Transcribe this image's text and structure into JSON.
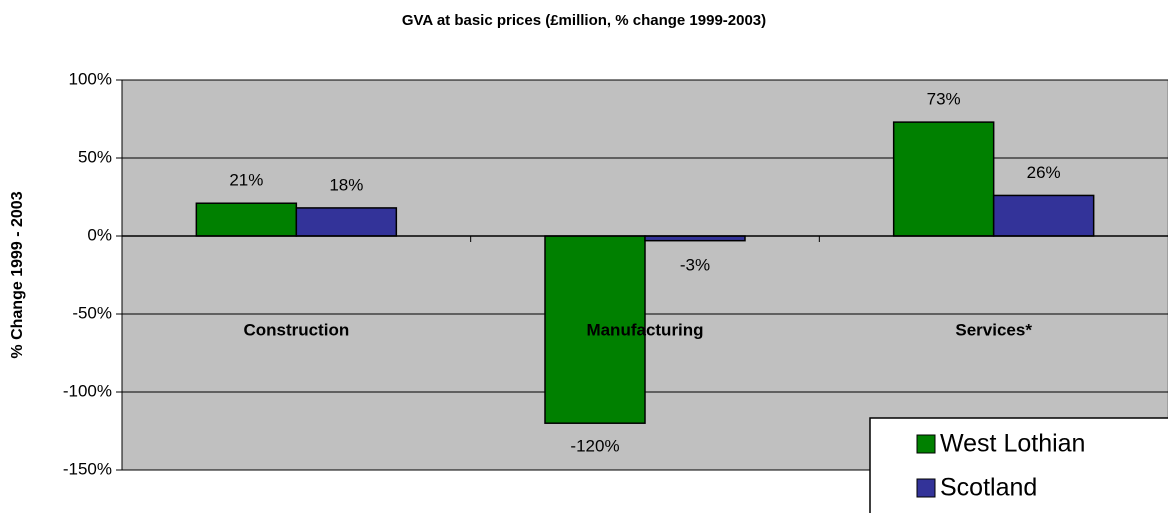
{
  "chart_data": {
    "type": "bar",
    "title": "GVA at basic prices (£million, % change 1999-2003)",
    "ylabel": "% Change 1999 - 2003",
    "categories": [
      "Construction",
      "Manufacturing",
      "Services*"
    ],
    "series": [
      {
        "name": "West Lothian",
        "color": "#008000",
        "values": [
          21,
          -120,
          73
        ],
        "value_labels": [
          "21%",
          "-120%",
          "73%"
        ]
      },
      {
        "name": "Scotland",
        "color": "#333399",
        "values": [
          18,
          -3,
          26
        ],
        "value_labels": [
          "18%",
          "-3%",
          "26%"
        ]
      }
    ],
    "ylim": [
      -150,
      100
    ],
    "yticks": [
      {
        "value": -150,
        "label": "-150%"
      },
      {
        "value": -100,
        "label": "-100%"
      },
      {
        "value": -50,
        "label": "-50%"
      },
      {
        "value": 0,
        "label": "0%"
      },
      {
        "value": 50,
        "label": "50%"
      },
      {
        "value": 100,
        "label": "100%"
      }
    ],
    "grid": true,
    "background": "#c0c0c0",
    "legend": "bottom-right"
  }
}
